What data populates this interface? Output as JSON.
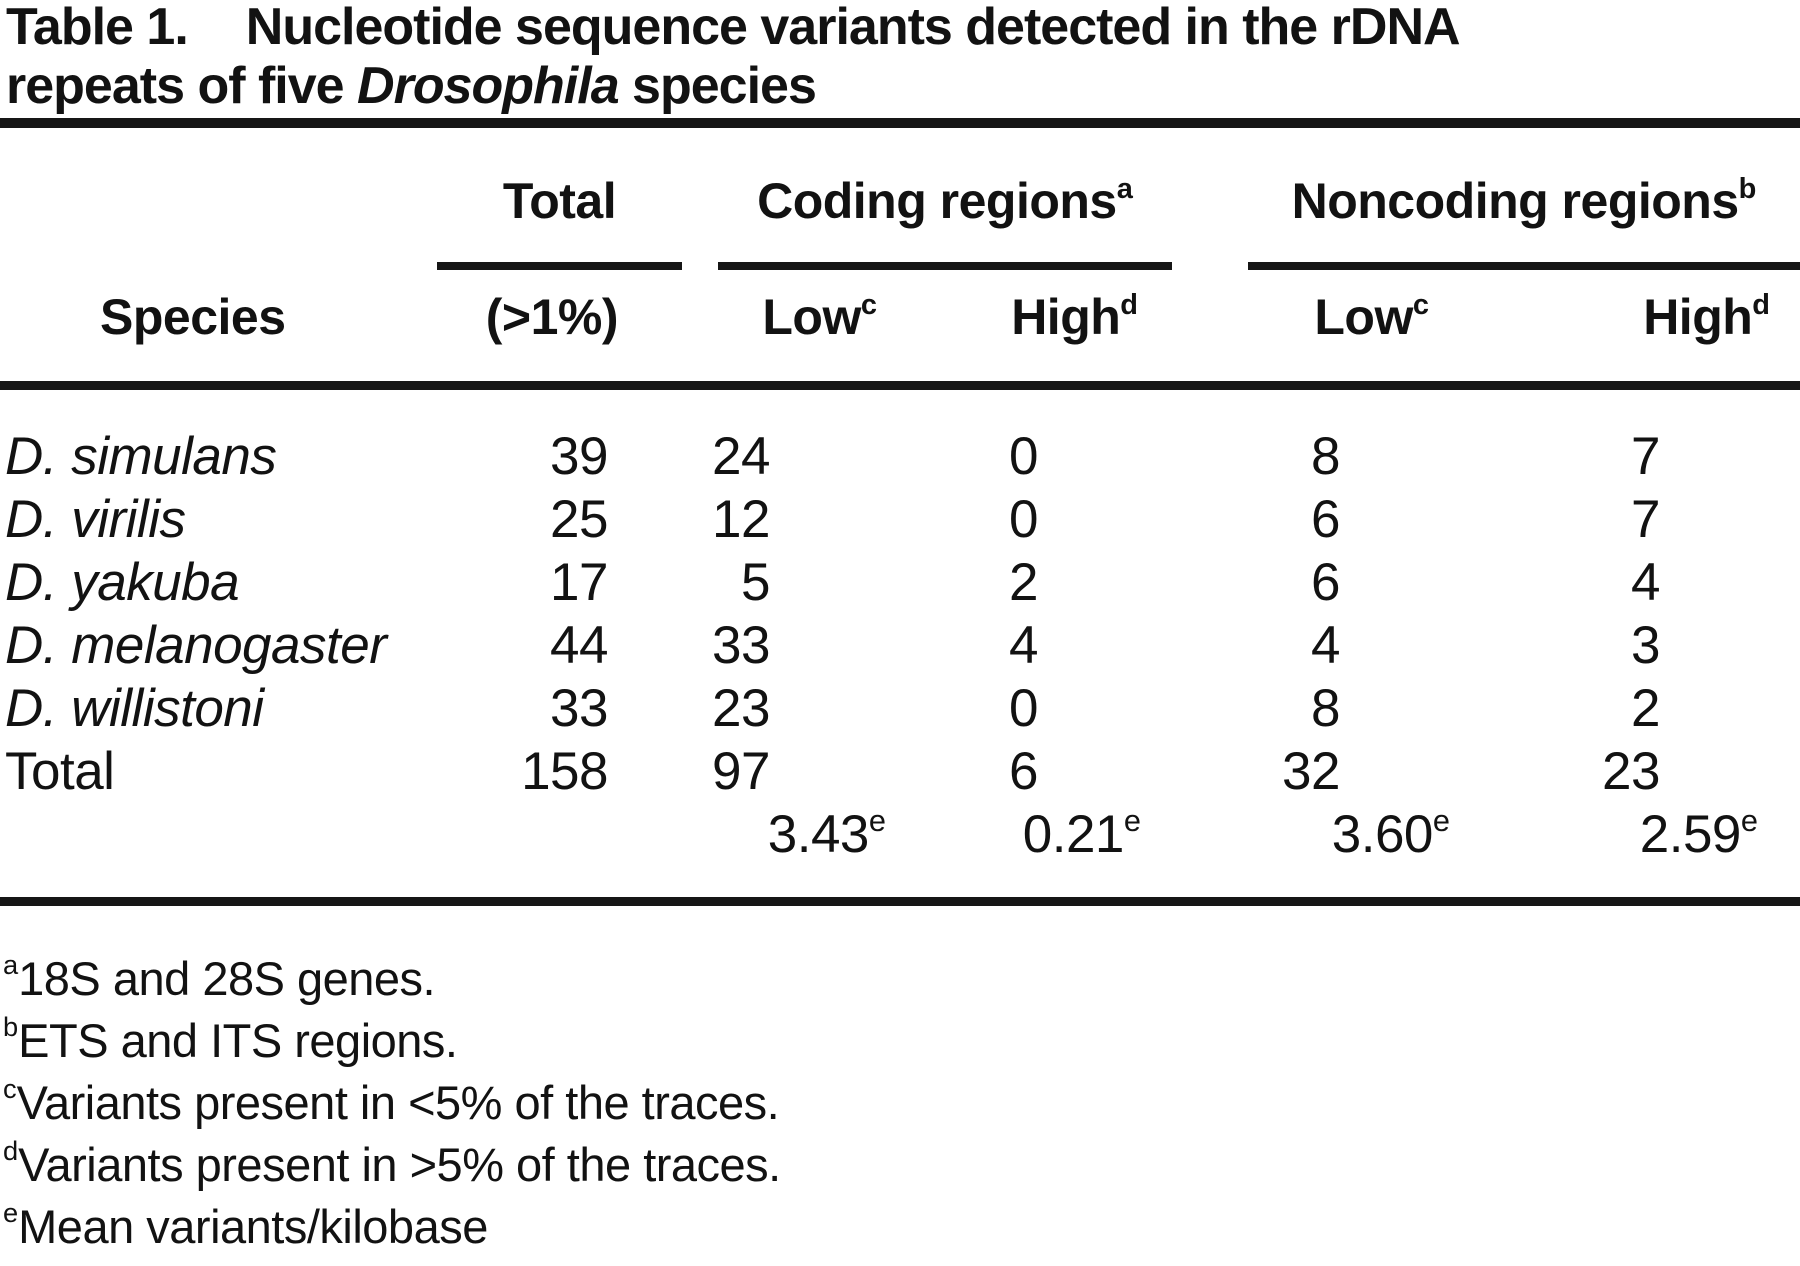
{
  "title": {
    "label": "Table 1.",
    "line1": "Nucleotide sequence variants detected in the rDNA",
    "line2_pre": "repeats of five ",
    "line2_italic": "Drosophila",
    "line2_post": " species"
  },
  "header": {
    "species": "Species",
    "total": {
      "label": "Total",
      "sub": "(>1%)"
    },
    "coding": {
      "label": "Coding regions",
      "sup": "a",
      "low": {
        "label": "Low",
        "sup": "c"
      },
      "high": {
        "label": "High",
        "sup": "d"
      }
    },
    "noncoding": {
      "label": "Noncoding regions",
      "sup": "b",
      "low": {
        "label": "Low",
        "sup": "c"
      },
      "high": {
        "label": "High",
        "sup": "d"
      }
    }
  },
  "table": {
    "rows": [
      {
        "species": "D. simulans",
        "total": "39",
        "coding_low": "24",
        "coding_high": "0",
        "noncoding_low": "8",
        "noncoding_high": "7"
      },
      {
        "species": "D. virilis",
        "total": "25",
        "coding_low": "12",
        "coding_high": "0",
        "noncoding_low": "6",
        "noncoding_high": "7"
      },
      {
        "species": "D. yakuba",
        "total": "17",
        "coding_low": "5",
        "coding_high": "2",
        "noncoding_low": "6",
        "noncoding_high": "4"
      },
      {
        "species": "D. melanogaster",
        "total": "44",
        "coding_low": "33",
        "coding_high": "4",
        "noncoding_low": "4",
        "noncoding_high": "3"
      },
      {
        "species": "D. willistoni",
        "total": "33",
        "coding_low": "23",
        "coding_high": "0",
        "noncoding_low": "8",
        "noncoding_high": "2"
      },
      {
        "species": "Total",
        "total": "158",
        "coding_low": "97",
        "coding_high": "6",
        "noncoding_low": "32",
        "noncoding_high": "23"
      }
    ],
    "means": {
      "coding_low": "3.43",
      "coding_high": "0.21",
      "noncoding_low": "3.60",
      "noncoding_high": "2.59",
      "sup": "e"
    }
  },
  "footnotes": [
    {
      "sup": "a",
      "text": "18S and 28S genes."
    },
    {
      "sup": "b",
      "text": "ETS and ITS regions."
    },
    {
      "sup": "c",
      "text": "Variants present in <5% of the traces."
    },
    {
      "sup": "d",
      "text": "Variants present in >5% of the traces."
    },
    {
      "sup": "e",
      "text": "Mean variants/kilobase"
    }
  ]
}
